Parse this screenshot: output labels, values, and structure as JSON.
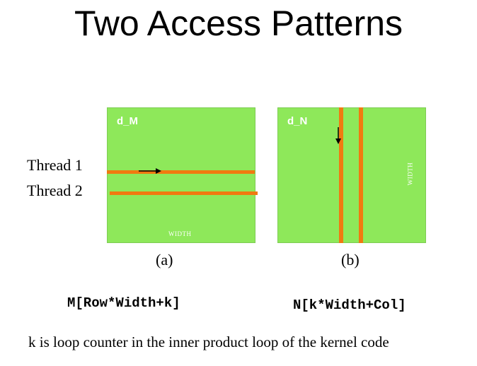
{
  "title": "Two Access Patterns",
  "colors": {
    "matrix_fill": "#8ee85a",
    "access_bar": "#f07a10",
    "text": "#000000",
    "matrix_label": "#ffffff"
  },
  "diagram_a": {
    "matrix_label": "d_M",
    "width_label": "WIDTH",
    "thread_labels": [
      "Thread 1",
      "Thread 2"
    ],
    "caption": "(a)",
    "code": "M[Row*Width+k]"
  },
  "diagram_b": {
    "matrix_label": "d_N",
    "width_label": "WIDTH",
    "caption": "(b)",
    "code": "N[k*Width+Col]"
  },
  "footnote": "k is loop counter in the inner product loop of the kernel code"
}
